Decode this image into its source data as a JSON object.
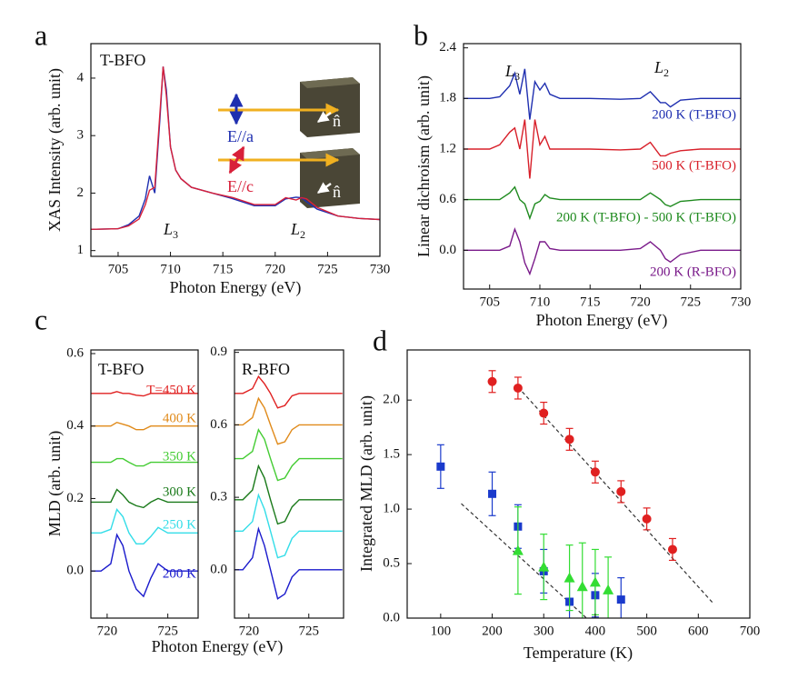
{
  "chart_data": [
    {
      "type": "line",
      "panel": "a",
      "title": "T-BFO",
      "xlabel": "Photon Energy (eV)",
      "ylabel": "XAS Intensity (arb. unit)",
      "xlim": [
        702.4,
        730
      ],
      "xticks": [
        705,
        710,
        715,
        720,
        725,
        730
      ],
      "ylim": [
        0.9,
        4.6
      ],
      "yticks": [
        1,
        2,
        3,
        4
      ],
      "x": [
        702.4,
        705,
        706,
        707,
        707.6,
        708,
        708.5,
        709,
        709.3,
        709.6,
        710,
        710.5,
        711,
        712,
        714,
        716,
        718,
        720,
        721,
        722,
        722.5,
        723,
        724,
        726,
        728,
        730
      ],
      "series": [
        {
          "name": "E//a",
          "color": "#1f2fb0",
          "values": [
            1.37,
            1.38,
            1.45,
            1.6,
            1.9,
            2.3,
            2.0,
            3.3,
            4.2,
            3.8,
            2.8,
            2.4,
            2.25,
            2.1,
            2.0,
            1.9,
            1.78,
            1.78,
            1.9,
            1.93,
            1.92,
            1.85,
            1.72,
            1.6,
            1.56,
            1.54
          ]
        },
        {
          "name": "E//c",
          "color": "#d8203a",
          "values": [
            1.37,
            1.38,
            1.43,
            1.55,
            1.8,
            2.05,
            2.1,
            3.4,
            4.2,
            3.7,
            2.8,
            2.4,
            2.25,
            2.1,
            2.0,
            1.92,
            1.8,
            1.8,
            1.92,
            1.88,
            1.92,
            1.9,
            1.75,
            1.6,
            1.56,
            1.54
          ]
        }
      ],
      "annotations": [
        {
          "text": "L",
          "sub": "3"
        },
        {
          "text": "L",
          "sub": "2"
        }
      ],
      "inset_labels": [
        "n̂",
        "n̂"
      ]
    },
    {
      "type": "line",
      "panel": "b",
      "ylabel": "Linear dichroism (arb. unit)",
      "xlabel": "Photon Energy (eV)",
      "xlim": [
        702.4,
        730
      ],
      "xticks": [
        705,
        710,
        715,
        720,
        725,
        730
      ],
      "ylim": [
        -0.46,
        2.45
      ],
      "yticks": [
        {
          "value": 0,
          "label": "0.0"
        },
        0.6,
        1.2,
        1.8,
        2.4
      ],
      "x": [
        702.4,
        705,
        706,
        707,
        707.5,
        708,
        708.5,
        709,
        709.5,
        710,
        710.5,
        711,
        712,
        715,
        718,
        720,
        721,
        722,
        722.5,
        723,
        724,
        726,
        730
      ],
      "series": [
        {
          "name": "200 K (T-BFO)",
          "color": "#1f2fb0",
          "values": [
            1.8,
            1.8,
            1.82,
            1.95,
            2.1,
            1.85,
            2.15,
            1.55,
            2.0,
            1.9,
            1.98,
            1.85,
            1.8,
            1.8,
            1.79,
            1.8,
            1.88,
            1.75,
            1.75,
            1.7,
            1.78,
            1.8,
            1.8
          ]
        },
        {
          "name": "500 K (T-BFO)",
          "color": "#d8202a",
          "values": [
            1.2,
            1.2,
            1.25,
            1.4,
            1.45,
            1.2,
            1.55,
            0.85,
            1.55,
            1.25,
            1.35,
            1.2,
            1.2,
            1.2,
            1.19,
            1.2,
            1.28,
            1.12,
            1.12,
            1.15,
            1.18,
            1.2,
            1.2
          ]
        },
        {
          "name": "200 K (T-BFO) - 500 K (T-BFO)",
          "color": "#1e8a1e",
          "values": [
            0.6,
            0.6,
            0.6,
            0.68,
            0.75,
            0.6,
            0.55,
            0.38,
            0.55,
            0.58,
            0.66,
            0.62,
            0.6,
            0.6,
            0.6,
            0.6,
            0.68,
            0.6,
            0.54,
            0.52,
            0.58,
            0.6,
            0.6
          ]
        },
        {
          "name": "200 K (R-BFO)",
          "color": "#7a1a8a",
          "values": [
            0,
            0,
            0,
            0.05,
            0.25,
            0.1,
            -0.15,
            -0.28,
            -0.1,
            0.1,
            0.1,
            0.02,
            0,
            0,
            0,
            0.02,
            0.1,
            0,
            -0.1,
            -0.14,
            -0.05,
            0,
            0
          ]
        }
      ],
      "annotations": [
        {
          "text": "L",
          "sub": "3"
        },
        {
          "text": "L",
          "sub": "2"
        }
      ]
    },
    {
      "type": "line",
      "panel": "c",
      "title": "T-BFO",
      "ylabel": "MLD (arb. unit)",
      "xlabel": "Photon Energy (eV)",
      "xlim": [
        718.66,
        727.5
      ],
      "xticks": [
        720,
        725
      ],
      "ylim": [
        -0.13,
        0.61
      ],
      "yticks": [
        {
          "value": 0,
          "label": "0.0"
        },
        0.2,
        0.4,
        0.6
      ],
      "x": [
        718.7,
        719.5,
        720.3,
        720.8,
        721.3,
        721.8,
        722.4,
        723,
        723.6,
        724.2,
        725,
        726,
        727.5
      ],
      "series": [
        {
          "name": "200 K",
          "color": "#1a1acc",
          "values": [
            0,
            0,
            0.02,
            0.1,
            0.07,
            0,
            -0.05,
            -0.07,
            -0.02,
            0.02,
            0,
            0,
            0
          ]
        },
        {
          "name": "250 K",
          "color": "#33dde8",
          "values": [
            0.105,
            0.105,
            0.115,
            0.17,
            0.15,
            0.105,
            0.075,
            0.075,
            0.095,
            0.12,
            0.105,
            0.105,
            0.105
          ]
        },
        {
          "name": "300 K",
          "color": "#1a7a1a",
          "values": [
            0.19,
            0.19,
            0.19,
            0.225,
            0.21,
            0.19,
            0.18,
            0.175,
            0.19,
            0.2,
            0.19,
            0.19,
            0.19
          ]
        },
        {
          "name": "350 K",
          "color": "#44cc33",
          "values": [
            0.3,
            0.3,
            0.3,
            0.31,
            0.31,
            0.3,
            0.29,
            0.29,
            0.3,
            0.3,
            0.3,
            0.3,
            0.3
          ]
        },
        {
          "name": "400 K",
          "color": "#e08a1a",
          "values": [
            0.4,
            0.4,
            0.4,
            0.41,
            0.405,
            0.4,
            0.39,
            0.39,
            0.4,
            0.4,
            0.4,
            0.4,
            0.4
          ]
        },
        {
          "name": "T=450 K",
          "color": "#e02020",
          "values": [
            0.49,
            0.49,
            0.49,
            0.495,
            0.49,
            0.49,
            0.485,
            0.483,
            0.49,
            0.49,
            0.49,
            0.49,
            0.49
          ]
        }
      ]
    },
    {
      "type": "line",
      "title": "R-BFO",
      "xlim": [
        718.8,
        727.9
      ],
      "xticks": [
        720,
        725
      ],
      "ylim": [
        -0.2,
        0.91
      ],
      "yticks": [
        {
          "value": 0,
          "label": "0.0"
        },
        0.3,
        0.6,
        0.9
      ],
      "x": [
        718.8,
        719.5,
        720.3,
        720.8,
        721.3,
        721.8,
        722.4,
        723,
        723.6,
        724.2,
        725,
        726,
        727.8
      ],
      "series": [
        {
          "color": "#1a1acc",
          "values": [
            0,
            0,
            0.05,
            0.17,
            0.1,
            0,
            -0.12,
            -0.1,
            -0.03,
            0,
            0,
            0,
            0
          ]
        },
        {
          "color": "#33dde8",
          "values": [
            0.16,
            0.16,
            0.2,
            0.31,
            0.25,
            0.16,
            0.05,
            0.06,
            0.13,
            0.16,
            0.16,
            0.16,
            0.16
          ]
        },
        {
          "color": "#1a7a1a",
          "values": [
            0.29,
            0.29,
            0.33,
            0.43,
            0.38,
            0.29,
            0.19,
            0.2,
            0.26,
            0.29,
            0.29,
            0.29,
            0.29
          ]
        },
        {
          "color": "#44cc33",
          "values": [
            0.46,
            0.46,
            0.49,
            0.58,
            0.54,
            0.46,
            0.37,
            0.38,
            0.43,
            0.46,
            0.46,
            0.46,
            0.46
          ]
        },
        {
          "color": "#e08a1a",
          "values": [
            0.6,
            0.6,
            0.63,
            0.71,
            0.67,
            0.6,
            0.52,
            0.53,
            0.58,
            0.6,
            0.6,
            0.6,
            0.6
          ]
        },
        {
          "color": "#e02020",
          "values": [
            0.73,
            0.73,
            0.75,
            0.8,
            0.77,
            0.73,
            0.67,
            0.68,
            0.72,
            0.73,
            0.73,
            0.73,
            0.73
          ]
        }
      ]
    },
    {
      "type": "scatter",
      "panel": "d",
      "xlabel": "Temperature (K)",
      "ylabel": "Integrated MLD (arb. unit)",
      "xlim": [
        35,
        700
      ],
      "xticks": [
        100,
        200,
        300,
        400,
        500,
        600,
        700
      ],
      "ylim": [
        0,
        2.46
      ],
      "yticks": [
        {
          "value": 0,
          "label": "0.0"
        },
        0.5,
        {
          "value": 1,
          "label": "1.0"
        },
        1.5,
        {
          "value": 2,
          "label": "2.0"
        }
      ],
      "series": [
        {
          "marker": "circle",
          "color": "#e02020",
          "x": [
            200,
            250,
            300,
            350,
            400,
            450,
            500,
            550
          ],
          "values": [
            2.17,
            2.11,
            1.88,
            1.64,
            1.34,
            1.16,
            0.91,
            0.63
          ],
          "errors": [
            0.1,
            0.1,
            0.1,
            0.1,
            0.1,
            0.1,
            0.1,
            0.1
          ]
        },
        {
          "marker": "square",
          "color": "#1a3acc",
          "x": [
            100,
            200,
            250,
            300,
            350,
            400,
            450
          ],
          "values": [
            1.39,
            1.14,
            0.84,
            0.43,
            0.15,
            0.21,
            0.17
          ],
          "errors": [
            0.2,
            0.2,
            0.2,
            0.2,
            0.2,
            0.2,
            0.2
          ]
        },
        {
          "marker": "triangle",
          "color": "#33dd33",
          "x": [
            250,
            300,
            350,
            375,
            400,
            425
          ],
          "values": [
            0.62,
            0.47,
            0.37,
            0.29,
            0.33,
            0.26
          ],
          "errors": [
            0.4,
            0.3,
            0.3,
            0.4,
            0.3,
            0.3
          ]
        }
      ],
      "fits": [
        {
          "color": "#333333",
          "x": [
            250,
            630
          ],
          "values": [
            2.12,
            0.13
          ]
        },
        {
          "color": "#333333",
          "x": [
            140,
            383
          ],
          "values": [
            1.05,
            0
          ]
        }
      ]
    }
  ]
}
